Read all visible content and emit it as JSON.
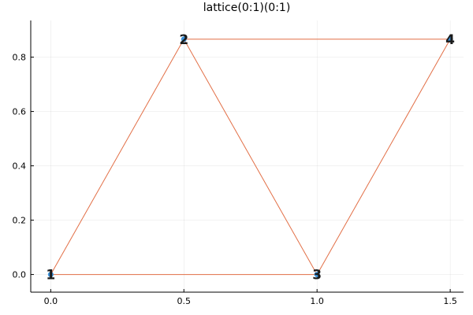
{
  "chart_data": {
    "type": "scatter",
    "title": "lattice(0:1)(0:1)",
    "xlabel": "",
    "ylabel": "",
    "xlim": [
      -0.075,
      1.55
    ],
    "ylim": [
      -0.065,
      0.935
    ],
    "xticks": [
      0,
      0.5,
      1,
      1.5
    ],
    "xtick_labels": [
      "0.0",
      "0.5",
      "1.0",
      "1.5"
    ],
    "yticks": [
      0,
      0.2,
      0.4,
      0.6,
      0.8
    ],
    "ytick_labels": [
      "0.0",
      "0.2",
      "0.4",
      "0.6",
      "0.8"
    ],
    "grid": true,
    "legend": "none",
    "nodes": [
      {
        "label": "1",
        "x": 0,
        "y": 0
      },
      {
        "label": "2",
        "x": 0.5,
        "y": 0.866
      },
      {
        "label": "3",
        "x": 1,
        "y": 0
      },
      {
        "label": "4",
        "x": 1.5,
        "y": 0.866
      }
    ],
    "edges": [
      [
        1,
        2
      ],
      [
        1,
        3
      ],
      [
        2,
        3
      ],
      [
        2,
        4
      ],
      [
        3,
        4
      ]
    ],
    "edge_color": "#e26f46",
    "node_color": "#3a8fd6"
  }
}
